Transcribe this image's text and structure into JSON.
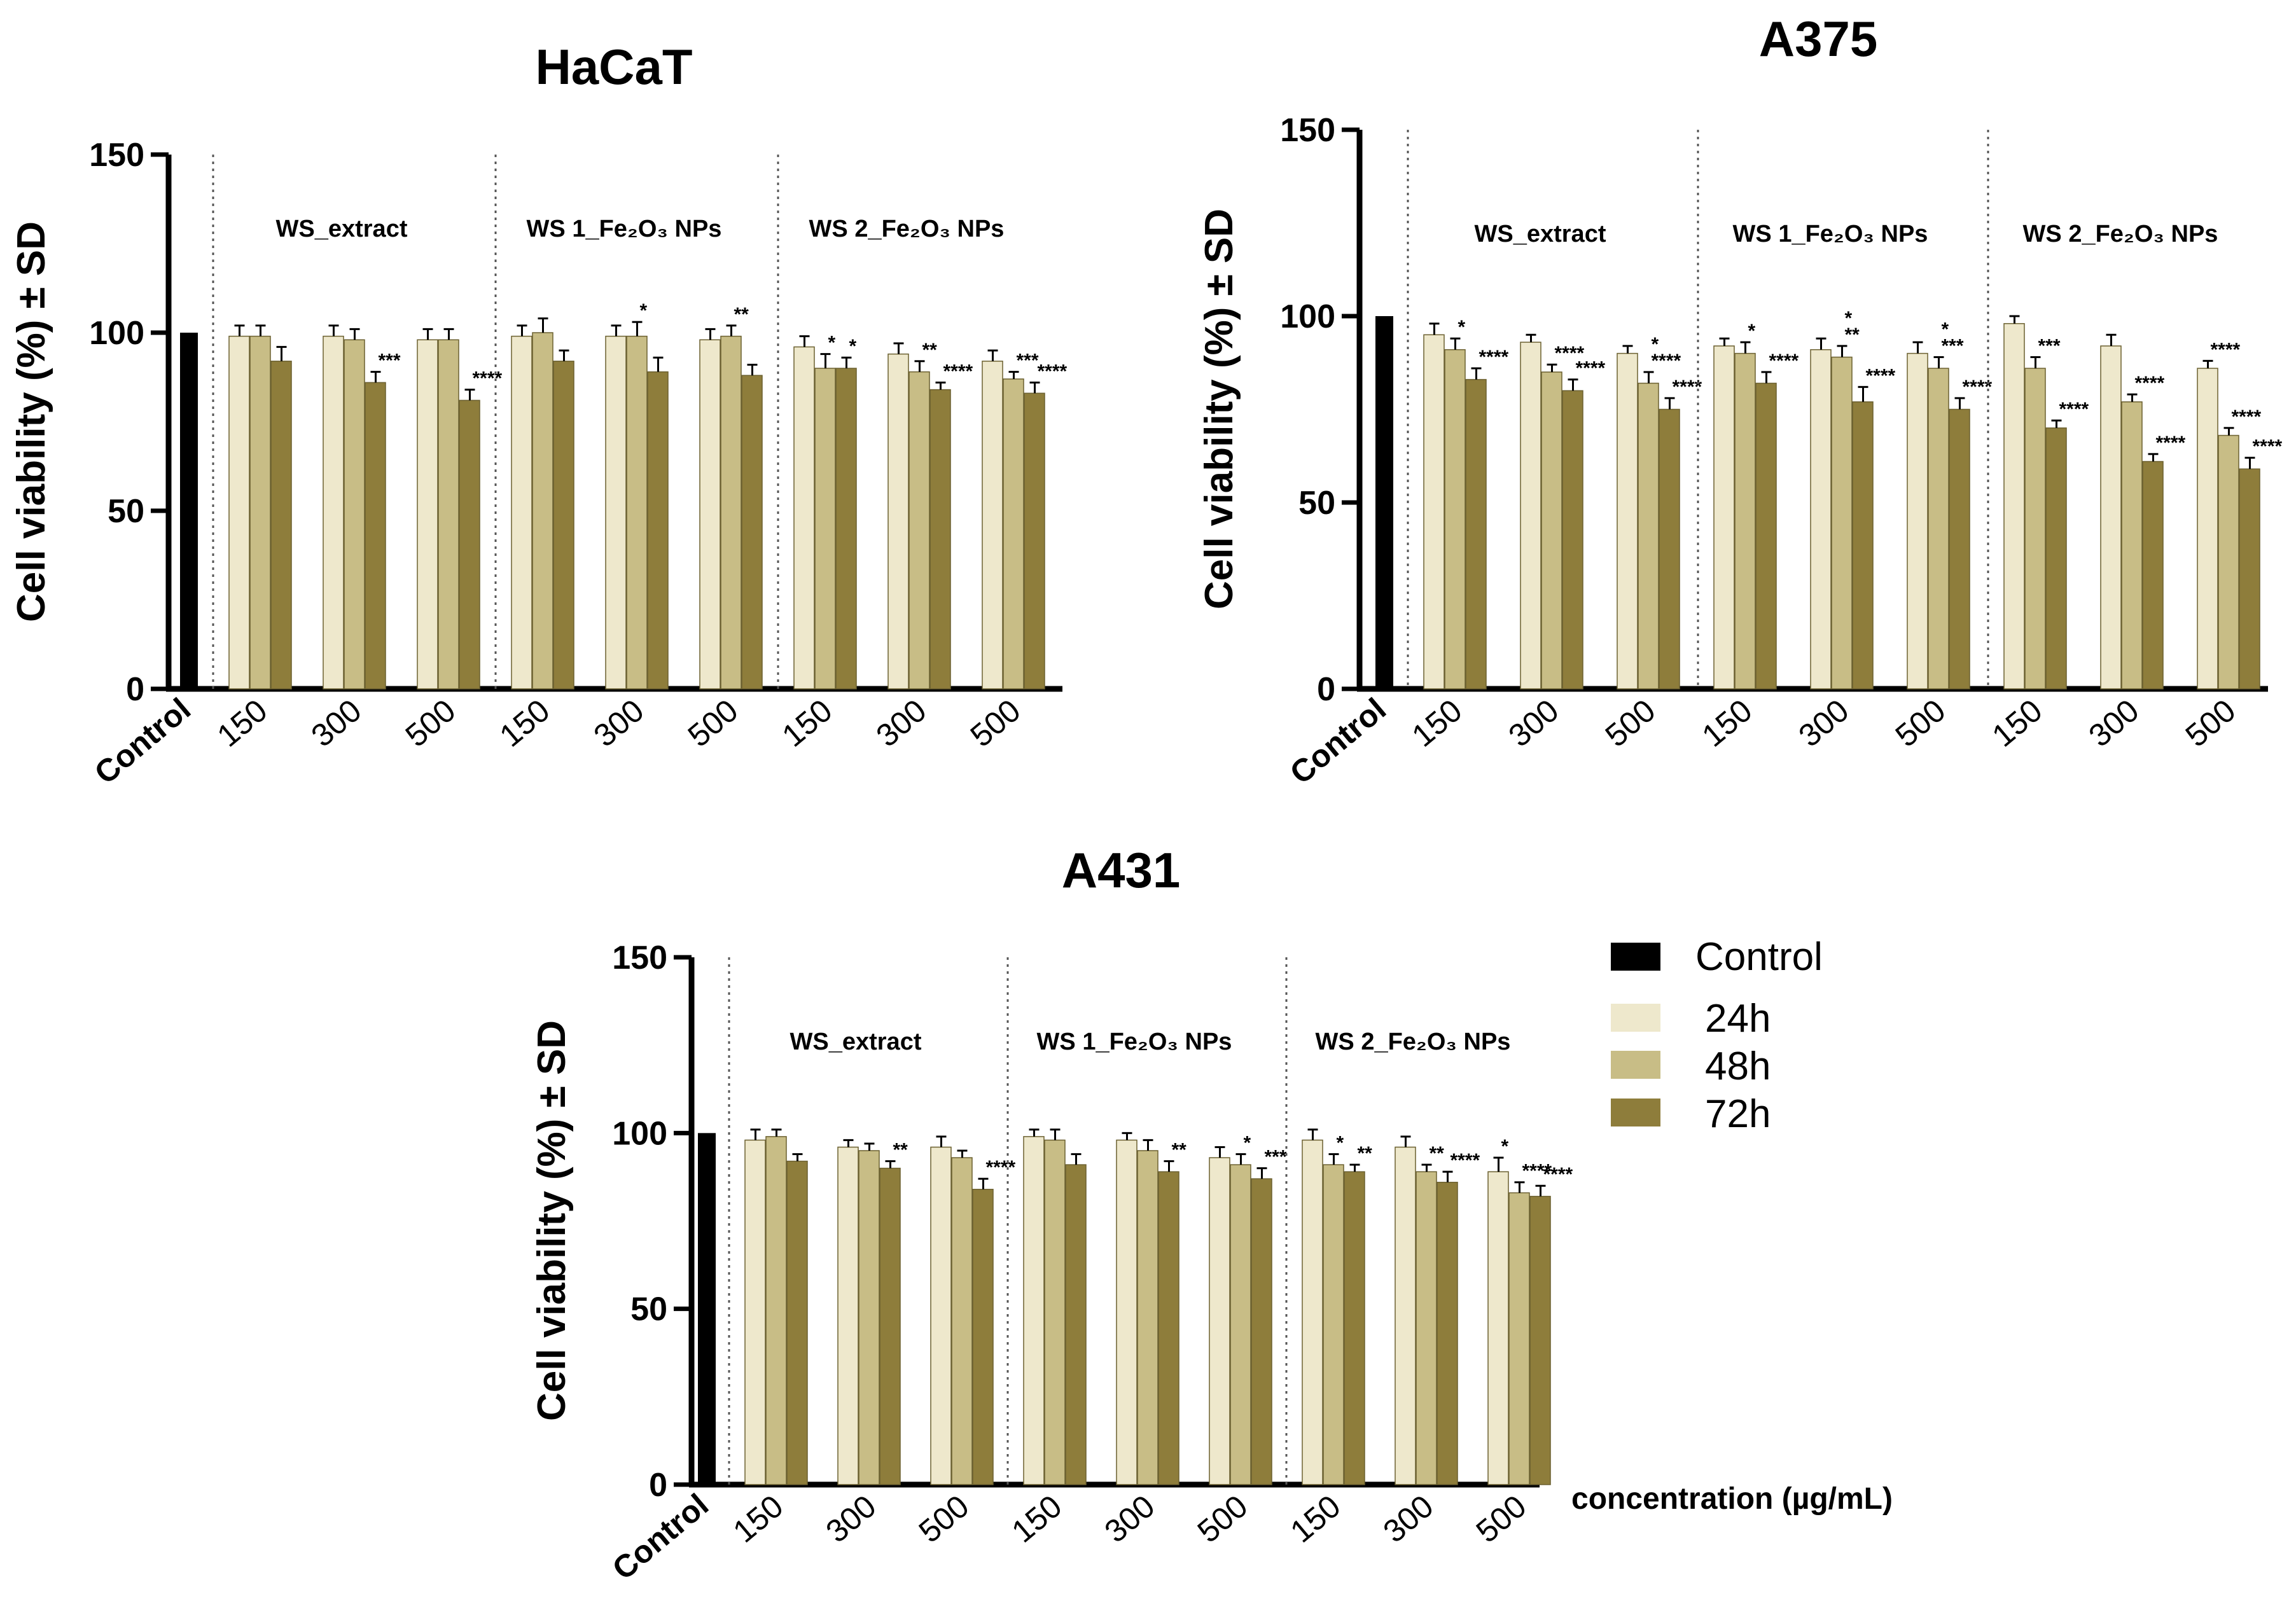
{
  "colors": {
    "control": "#000000",
    "h24": "#EEE8CC",
    "h48": "#C8BD86",
    "h72": "#8E7D3B",
    "separator": "#555555"
  },
  "legend": {
    "items": [
      {
        "label": "Control",
        "key": "control"
      },
      {
        "label": "24h",
        "key": "h24"
      },
      {
        "label": "48h",
        "key": "h48"
      },
      {
        "label": "72h",
        "key": "h72"
      }
    ]
  },
  "x_axis_label": "concentration (µg/mL)",
  "chart_data": [
    {
      "type": "bar",
      "title": "HaCaT",
      "ylabel": "Cell viability (%) ± SD",
      "ylim": [
        0,
        150
      ],
      "yticks": [
        "0",
        "50",
        "100",
        "150"
      ],
      "control": {
        "label": "Control",
        "value": 100
      },
      "groups": [
        {
          "label": "WS_extract",
          "concentrations": [
            {
              "label": "150",
              "values": [
                99,
                99,
                92
              ],
              "errors": [
                3,
                3,
                4
              ],
              "sig": [
                "",
                "",
                ""
              ]
            },
            {
              "label": "300",
              "values": [
                99,
                98,
                86
              ],
              "errors": [
                3,
                3,
                3
              ],
              "sig": [
                "",
                "",
                "***"
              ]
            },
            {
              "label": "500",
              "values": [
                98,
                98,
                81
              ],
              "errors": [
                3,
                3,
                3
              ],
              "sig": [
                "",
                "",
                "****"
              ]
            }
          ]
        },
        {
          "label": "WS 1_Fe₂O₃ NPs",
          "concentrations": [
            {
              "label": "150",
              "values": [
                99,
                100,
                92
              ],
              "errors": [
                3,
                4,
                3
              ],
              "sig": [
                "",
                "",
                ""
              ]
            },
            {
              "label": "300",
              "values": [
                99,
                99,
                89
              ],
              "errors": [
                3,
                4,
                4
              ],
              "sig": [
                "",
                "*",
                ""
              ]
            },
            {
              "label": "500",
              "values": [
                98,
                99,
                88
              ],
              "errors": [
                3,
                3,
                3
              ],
              "sig": [
                "",
                "**",
                ""
              ]
            }
          ]
        },
        {
          "label": "WS 2_Fe₂O₃ NPs",
          "concentrations": [
            {
              "label": "150",
              "values": [
                96,
                90,
                90
              ],
              "errors": [
                3,
                4,
                3
              ],
              "sig": [
                "",
                "*",
                "*"
              ]
            },
            {
              "label": "300",
              "values": [
                94,
                89,
                84
              ],
              "errors": [
                3,
                3,
                2
              ],
              "sig": [
                "",
                "**",
                "****"
              ]
            },
            {
              "label": "500",
              "values": [
                92,
                87,
                83
              ],
              "errors": [
                3,
                2,
                3
              ],
              "sig": [
                "",
                "***",
                "****"
              ]
            }
          ]
        }
      ]
    },
    {
      "type": "bar",
      "title": "A375",
      "ylabel": "Cell viability (%) ± SD",
      "ylim": [
        0,
        150
      ],
      "yticks": [
        "0",
        "50",
        "100",
        "150"
      ],
      "control": {
        "label": "Control",
        "value": 100
      },
      "groups": [
        {
          "label": "WS_extract",
          "concentrations": [
            {
              "label": "150",
              "values": [
                95,
                91,
                83
              ],
              "errors": [
                3,
                3,
                3
              ],
              "sig": [
                "",
                "*",
                "****"
              ]
            },
            {
              "label": "300",
              "values": [
                93,
                85,
                80
              ],
              "errors": [
                2,
                2,
                3
              ],
              "sig": [
                "",
                "****",
                "****"
              ]
            },
            {
              "label": "500",
              "values": [
                90,
                82,
                75
              ],
              "errors": [
                2,
                3,
                3
              ],
              "sig": [
                "",
                "*\n****",
                "****"
              ]
            }
          ]
        },
        {
          "label": "WS 1_Fe₂O₃ NPs",
          "concentrations": [
            {
              "label": "150",
              "values": [
                92,
                90,
                82
              ],
              "errors": [
                2,
                3,
                3
              ],
              "sig": [
                "",
                "*",
                "****"
              ]
            },
            {
              "label": "300",
              "values": [
                91,
                89,
                77
              ],
              "errors": [
                3,
                3,
                4
              ],
              "sig": [
                "",
                "*\n**",
                "****"
              ]
            },
            {
              "label": "500",
              "values": [
                90,
                86,
                75
              ],
              "errors": [
                3,
                3,
                3
              ],
              "sig": [
                "",
                "*\n***",
                "****"
              ]
            }
          ]
        },
        {
          "label": "WS 2_Fe₂O₃ NPs",
          "concentrations": [
            {
              "label": "150",
              "values": [
                98,
                86,
                70
              ],
              "errors": [
                2,
                3,
                2
              ],
              "sig": [
                "",
                "***",
                "****"
              ]
            },
            {
              "label": "300",
              "values": [
                92,
                77,
                61
              ],
              "errors": [
                3,
                2,
                2
              ],
              "sig": [
                "",
                "****",
                "****"
              ]
            },
            {
              "label": "500",
              "values": [
                86,
                68,
                59
              ],
              "errors": [
                2,
                2,
                3
              ],
              "sig": [
                "****",
                "****",
                "****"
              ]
            }
          ]
        }
      ]
    },
    {
      "type": "bar",
      "title": "A431",
      "ylabel": "Cell viability (%) ± SD",
      "ylim": [
        0,
        150
      ],
      "yticks": [
        "0",
        "50",
        "100",
        "150"
      ],
      "control": {
        "label": "Control",
        "value": 100
      },
      "groups": [
        {
          "label": "WS_extract",
          "concentrations": [
            {
              "label": "150",
              "values": [
                98,
                99,
                92
              ],
              "errors": [
                3,
                2,
                2
              ],
              "sig": [
                "",
                "",
                ""
              ]
            },
            {
              "label": "300",
              "values": [
                96,
                95,
                90
              ],
              "errors": [
                2,
                2,
                2
              ],
              "sig": [
                "",
                "",
                "**"
              ]
            },
            {
              "label": "500",
              "values": [
                96,
                93,
                84
              ],
              "errors": [
                3,
                2,
                3
              ],
              "sig": [
                "",
                "",
                "****"
              ]
            }
          ]
        },
        {
          "label": "WS 1_Fe₂O₃ NPs",
          "concentrations": [
            {
              "label": "150",
              "values": [
                99,
                98,
                91
              ],
              "errors": [
                2,
                3,
                3
              ],
              "sig": [
                "",
                "",
                ""
              ]
            },
            {
              "label": "300",
              "values": [
                98,
                95,
                89
              ],
              "errors": [
                2,
                3,
                3
              ],
              "sig": [
                "",
                "",
                "**"
              ]
            },
            {
              "label": "500",
              "values": [
                93,
                91,
                87
              ],
              "errors": [
                3,
                3,
                3
              ],
              "sig": [
                "",
                "*",
                "***"
              ]
            }
          ]
        },
        {
          "label": "WS 2_Fe₂O₃ NPs",
          "concentrations": [
            {
              "label": "150",
              "values": [
                98,
                91,
                89
              ],
              "errors": [
                3,
                3,
                2
              ],
              "sig": [
                "",
                "*",
                "**"
              ]
            },
            {
              "label": "300",
              "values": [
                96,
                89,
                86
              ],
              "errors": [
                3,
                2,
                3
              ],
              "sig": [
                "",
                "**",
                "****"
              ]
            },
            {
              "label": "500",
              "values": [
                89,
                83,
                82
              ],
              "errors": [
                4,
                3,
                3
              ],
              "sig": [
                "*",
                "****",
                "****"
              ]
            }
          ]
        }
      ]
    }
  ]
}
